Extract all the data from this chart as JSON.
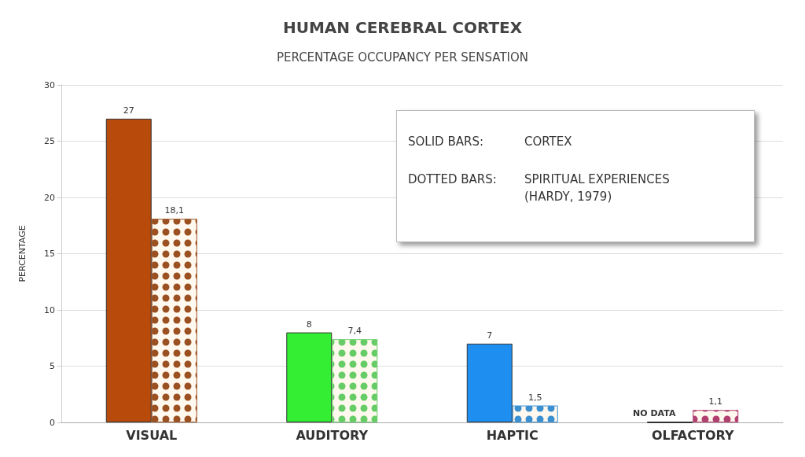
{
  "chart_data": {
    "type": "bar",
    "title": "HUMAN CEREBRAL CORTEX",
    "subtitle": "PERCENTAGE OCCUPANCY PER SENSATION",
    "ylabel": "PERCENTAGE",
    "categories": [
      "VISUAL",
      "AUDITORY",
      "HAPTIC",
      "OLFACTORY"
    ],
    "series": [
      {
        "colors": [
          "#b84a0c",
          "#33ee33",
          "#1e8ff0",
          "#555555"
        ],
        "values": [
          27,
          8,
          7,
          null
        ],
        "value_labels": [
          "27",
          "8",
          "7",
          "NO DATA"
        ]
      },
      {
        "colors": [
          "#9a5020",
          "#66cc66",
          "#3a8fd0",
          "#b04070"
        ],
        "values": [
          18.1,
          7.4,
          1.5,
          1.1
        ],
        "value_labels": [
          "18,1",
          "7,4",
          "1,5",
          "1,1"
        ]
      }
    ],
    "ylim": [
      0,
      30
    ],
    "yticks": [
      0,
      5,
      10,
      15,
      20,
      25,
      30
    ],
    "grid": "y",
    "annotations": [
      "SOLID BARS:",
      "CORTEX",
      "DOTTED BARS:",
      "SPIRITUAL EXPERIENCES\n(HARDY, 1979)"
    ]
  }
}
